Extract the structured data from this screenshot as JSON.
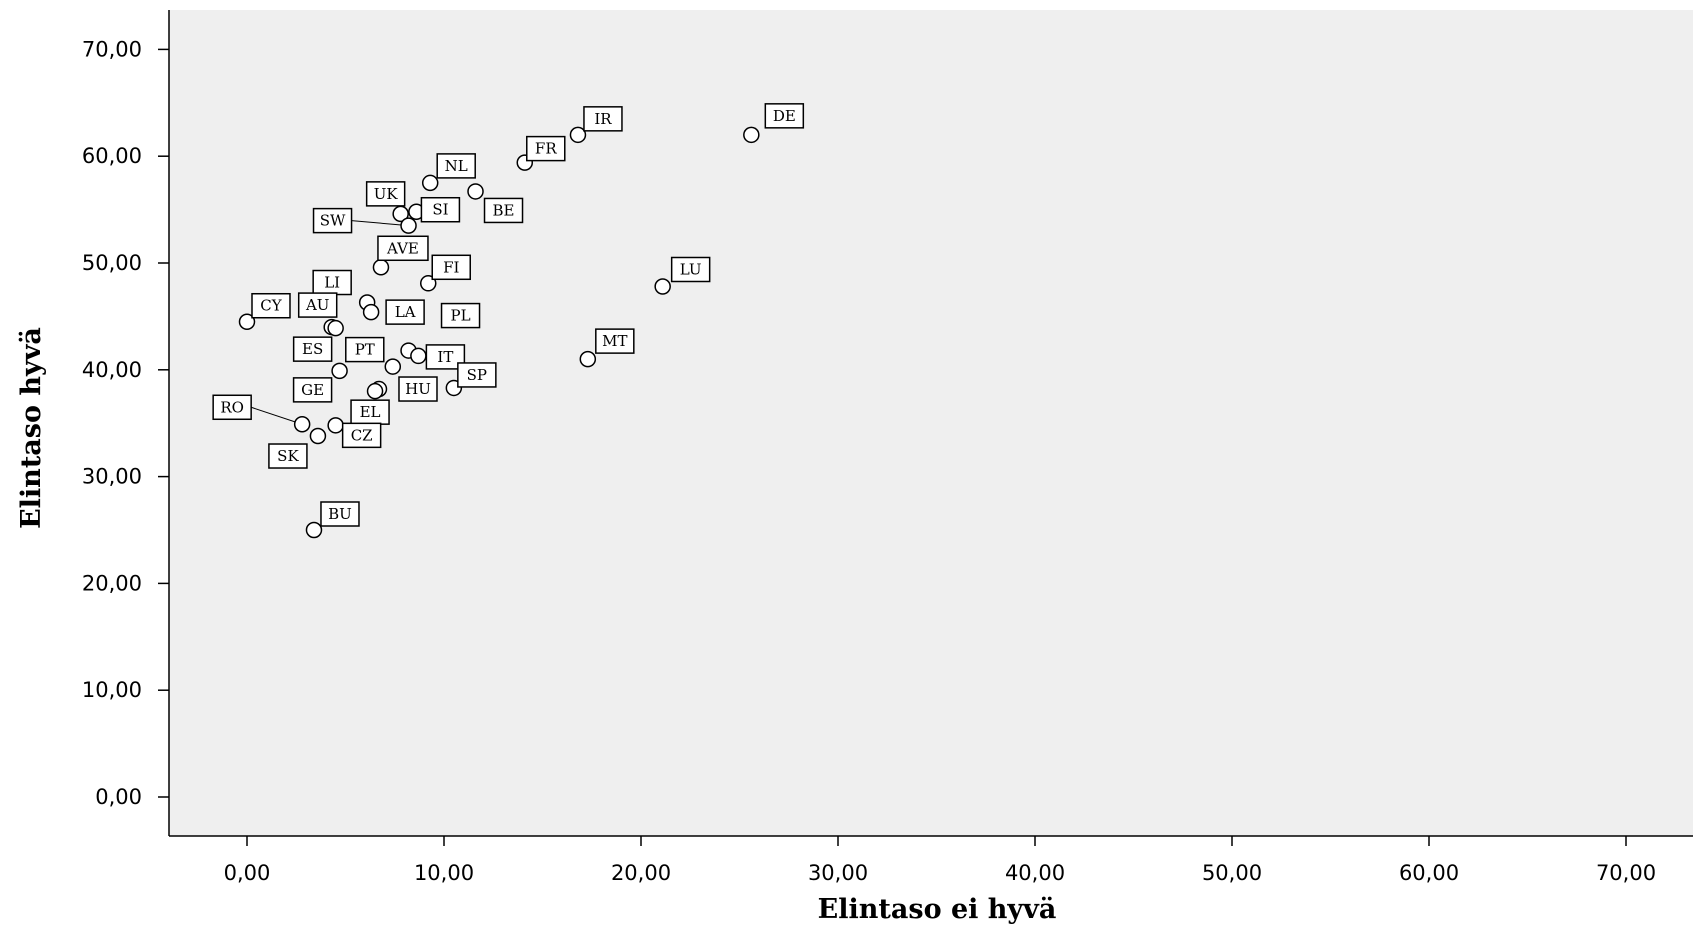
{
  "chart_data": {
    "type": "scatter",
    "title": "",
    "xlabel": "Elintaso ei hyvä",
    "ylabel": "Elintaso hyvä",
    "xlim": [
      -4,
      74
    ],
    "ylim": [
      -4,
      74
    ],
    "x_ticks": [
      "0,00",
      "10,00",
      "20,00",
      "30,00",
      "40,00",
      "50,00",
      "60,00",
      "70,00"
    ],
    "y_ticks": [
      "0,00",
      "10,00",
      "20,00",
      "30,00",
      "40,00",
      "50,00",
      "60,00",
      "70,00"
    ],
    "grid": false,
    "legend": "none",
    "colors": {
      "plot_background": "#efefef",
      "marker_stroke": "#000000",
      "marker_fill": "#ffffff"
    },
    "points": [
      {
        "label": "DE",
        "x": 25.6,
        "y": 62.0
      },
      {
        "label": "IR",
        "x": 16.8,
        "y": 62.0
      },
      {
        "label": "FR",
        "x": 14.1,
        "y": 59.4
      },
      {
        "label": "NL",
        "x": 9.3,
        "y": 57.5
      },
      {
        "label": "BE",
        "x": 11.6,
        "y": 56.7
      },
      {
        "label": "UK",
        "x": 7.8,
        "y": 54.6
      },
      {
        "label": "SI",
        "x": 8.6,
        "y": 54.8
      },
      {
        "label": "SW",
        "x": 8.2,
        "y": 53.5
      },
      {
        "label": "AVE",
        "x": 6.8,
        "y": 49.6
      },
      {
        "label": "FI",
        "x": 9.2,
        "y": 48.1
      },
      {
        "label": "LU",
        "x": 21.1,
        "y": 47.8
      },
      {
        "label": "LI",
        "x": 6.1,
        "y": 46.3
      },
      {
        "label": "LA",
        "x": 6.3,
        "y": 45.4
      },
      {
        "label": "CY",
        "x": 0.0,
        "y": 44.5
      },
      {
        "label": "AU",
        "x": 4.3,
        "y": 44.0
      },
      {
        "label": "ES",
        "x": 4.5,
        "y": 43.9
      },
      {
        "label": "PL",
        "x": 8.2,
        "y": 41.8
      },
      {
        "label": "IT",
        "x": 8.7,
        "y": 41.3
      },
      {
        "label": "MT",
        "x": 17.3,
        "y": 41.0
      },
      {
        "label": "PT",
        "x": 7.4,
        "y": 40.3
      },
      {
        "label": "GE",
        "x": 4.7,
        "y": 39.9
      },
      {
        "label": "SP",
        "x": 10.5,
        "y": 38.3
      },
      {
        "label": "HU",
        "x": 6.7,
        "y": 38.2
      },
      {
        "label": "EL",
        "x": 6.5,
        "y": 38.0
      },
      {
        "label": "RO",
        "x": 2.8,
        "y": 34.9
      },
      {
        "label": "CZ",
        "x": 4.5,
        "y": 34.8
      },
      {
        "label": "SK",
        "x": 3.6,
        "y": 33.8
      },
      {
        "label": "BU",
        "x": 3.4,
        "y": 25.0
      }
    ]
  }
}
